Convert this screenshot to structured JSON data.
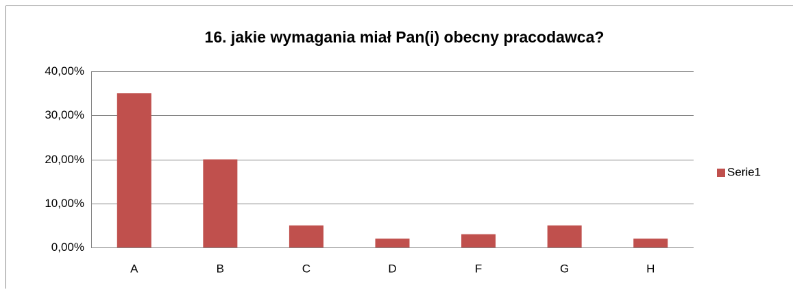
{
  "chart_data": {
    "type": "bar",
    "title": "16. jakie wymagania miał Pan(i) obecny pracodawca?",
    "categories": [
      "A",
      "B",
      "C",
      "D",
      "F",
      "G",
      "H"
    ],
    "series": [
      {
        "name": "Serie1",
        "color": "#c0504d",
        "values": [
          35,
          20,
          5,
          2,
          3,
          5,
          2
        ]
      }
    ],
    "ylim": [
      0,
      40
    ],
    "yticks": [
      {
        "value": 0,
        "label": "0,00%"
      },
      {
        "value": 10,
        "label": "10,00%"
      },
      {
        "value": 20,
        "label": "20,00%"
      },
      {
        "value": 30,
        "label": "30,00%"
      },
      {
        "value": 40,
        "label": "40,00%"
      }
    ],
    "grid": true,
    "legend": "right"
  }
}
